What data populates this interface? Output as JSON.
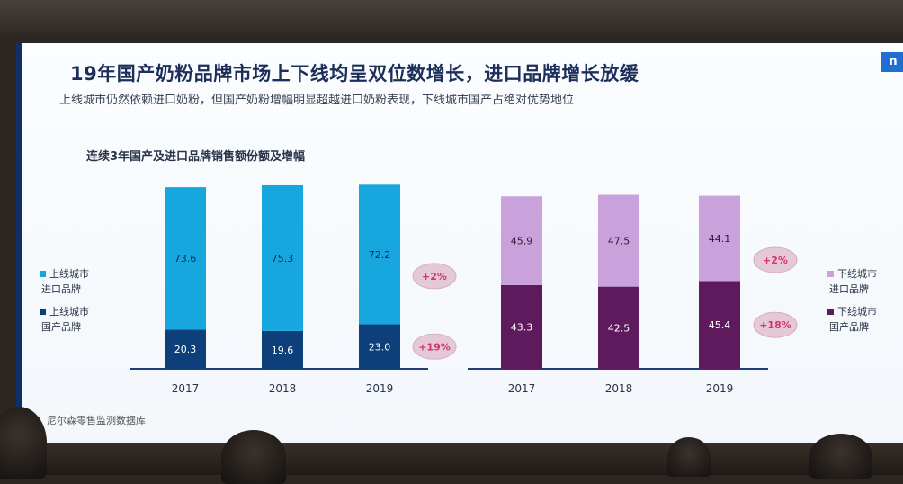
{
  "slide": {
    "title": "19年国产奶粉品牌市场上下线均呈双位数增长，进口品牌增长放缓",
    "subtitle": "上线城市仍然依赖进口奶粉，但国产奶粉增幅明显超越进口奶粉表现，下线城市国产占绝对优势地位",
    "chart_heading": "连续3年国产及进口品牌销售额份额及增幅",
    "source": "源：尼尔森零售监测数据库",
    "logo_text": "n"
  },
  "chart_data": [
    {
      "type": "bar",
      "stacked": true,
      "group": "上线城市",
      "categories": [
        "2017",
        "2018",
        "2019"
      ],
      "series": [
        {
          "name": "上线城市 国产品牌",
          "legend_lines": [
            "上线城市",
            "国产品牌"
          ],
          "values": [
            20.3,
            19.6,
            23.0
          ],
          "labels": [
            "20.3",
            "19.6",
            "23.0"
          ],
          "color": "#0d3f7a"
        },
        {
          "name": "上线城市 进口品牌",
          "legend_lines": [
            "上线城市",
            "进口品牌"
          ],
          "values": [
            73.6,
            75.3,
            72.2
          ],
          "labels": [
            "73.6",
            "75.3",
            "72.2"
          ],
          "color": "#17a6de"
        }
      ],
      "growth_badges": [
        {
          "series": "上线城市 进口品牌",
          "text": "+2%"
        },
        {
          "series": "上线城市 国产品牌",
          "text": "+19%"
        }
      ],
      "legend_position": "left"
    },
    {
      "type": "bar",
      "stacked": true,
      "group": "下线城市",
      "categories": [
        "2017",
        "2018",
        "2019"
      ],
      "series": [
        {
          "name": "下线城市 国产品牌",
          "legend_lines": [
            "下线城市",
            "国产品牌"
          ],
          "values": [
            43.3,
            42.5,
            45.4
          ],
          "labels": [
            "43.3",
            "42.5",
            "45.4"
          ],
          "color": "#5e1a5c"
        },
        {
          "name": "下线城市 进口品牌",
          "legend_lines": [
            "下线城市",
            "进口品牌"
          ],
          "values": [
            45.9,
            47.5,
            44.1
          ],
          "labels": [
            "45.9",
            "47.5",
            "44.1"
          ],
          "color": "#c9a2dc"
        }
      ],
      "growth_badges": [
        {
          "series": "下线城市 进口品牌",
          "text": "+2%"
        },
        {
          "series": "下线城市 国产品牌",
          "text": "+18%"
        }
      ],
      "legend_position": "right"
    }
  ]
}
